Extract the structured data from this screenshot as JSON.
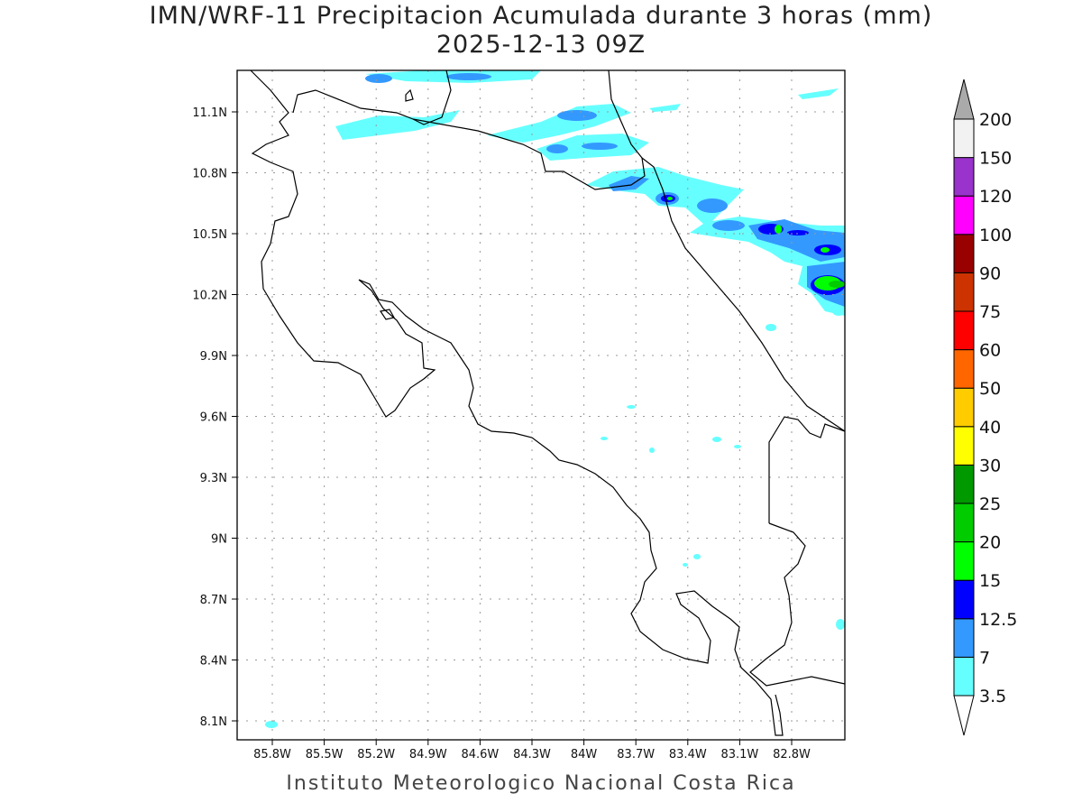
{
  "title": "IMN/WRF-11 Precipitacion Acumulada durante 3 horas (mm)",
  "subtitle": "2025-12-13 09Z",
  "footer": "Instituto Meteorologico Nacional Costa Rica",
  "map": {
    "lon_labels": [
      "85.8W",
      "85.5W",
      "85.2W",
      "84.9W",
      "84.6W",
      "84.3W",
      "84W",
      "83.7W",
      "83.4W",
      "83.1W",
      "82.8W"
    ],
    "lat_labels": [
      "11.1N",
      "10.8N",
      "10.5N",
      "10.2N",
      "9.9N",
      "9.6N",
      "9.3N",
      "9N",
      "8.7N",
      "8.4N",
      "8.1N"
    ]
  },
  "colorbar": {
    "labels": [
      "3.5",
      "7",
      "12.5",
      "15",
      "20",
      "25",
      "30",
      "40",
      "50",
      "60",
      "75",
      "90",
      "100",
      "120",
      "150",
      "200"
    ],
    "colors": [
      "#66ffff",
      "#3399ff",
      "#0000ff",
      "#00ff00",
      "#00cc00",
      "#009900",
      "#ffff00",
      "#ffcc00",
      "#ff6600",
      "#ff0000",
      "#cc3300",
      "#990000",
      "#ff00ff",
      "#9933cc",
      "#f2f2f2"
    ],
    "over_color": "#aaaaaa",
    "under_color": "#ffffff"
  }
}
